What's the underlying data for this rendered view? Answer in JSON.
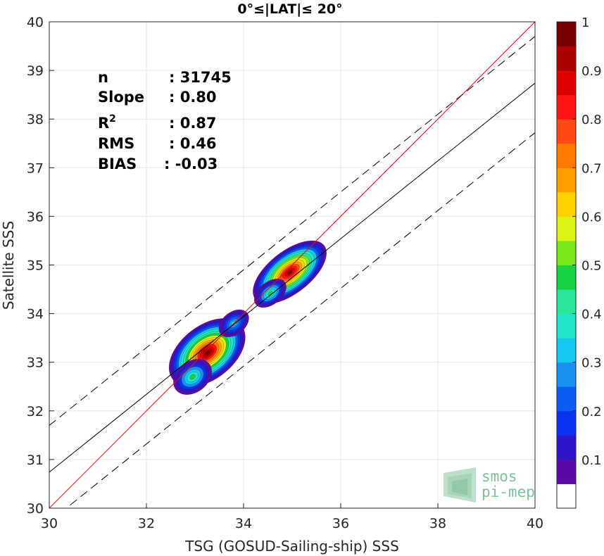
{
  "chart_data": {
    "type": "heatmap",
    "title": "0°≤|LAT|≤ 20°",
    "xlabel": "TSG (GOSUD-Sailing-ship) SSS",
    "ylabel": "Satellite SSS",
    "xlim": [
      30,
      40
    ],
    "ylim": [
      30,
      40
    ],
    "xticks": [
      "30",
      "32",
      "34",
      "36",
      "38",
      "40"
    ],
    "yticks": [
      "30",
      "31",
      "32",
      "33",
      "34",
      "35",
      "36",
      "37",
      "38",
      "39",
      "40"
    ],
    "grid": true,
    "stats": [
      {
        "label": "n",
        "value": ": 31745"
      },
      {
        "label": "Slope",
        "value": ": 0.80"
      },
      {
        "label": "R",
        "sup": "2",
        "value": ": 0.87"
      },
      {
        "label": "RMS",
        "value": ": 0.46"
      },
      {
        "label": "BIAS",
        "value": ": -0.03"
      }
    ],
    "lines": [
      {
        "name": "identity",
        "color": "#ff0000",
        "dash": false,
        "slope": 1.0,
        "intercept": 0.0
      },
      {
        "name": "regression",
        "color": "#000000",
        "dash": false,
        "slope": 0.8,
        "intercept": 6.74
      },
      {
        "name": "upper-bound",
        "color": "#000000",
        "dash": true,
        "slope": 0.8,
        "intercept": 7.7
      },
      {
        "name": "lower-bound",
        "color": "#000000",
        "dash": true,
        "slope": 0.8,
        "intercept": 5.72
      }
    ],
    "density_peaks": [
      {
        "x": 33.25,
        "y": 33.2,
        "level": 1.0
      },
      {
        "x": 34.95,
        "y": 34.85,
        "level": 0.95
      },
      {
        "x": 34.55,
        "y": 34.42,
        "level": 0.45
      },
      {
        "x": 33.8,
        "y": 33.8,
        "level": 0.35
      },
      {
        "x": 32.95,
        "y": 32.7,
        "level": 0.45
      }
    ],
    "colorbar": {
      "range": [
        0.05,
        1
      ],
      "ticks": [
        "0.1",
        "0.2",
        "0.3",
        "0.4",
        "0.5",
        "0.6",
        "0.7",
        "0.8",
        "0.9",
        "1"
      ],
      "colors": [
        "#ffffff",
        "#5c0aa8",
        "#2e17c8",
        "#0a33f0",
        "#0a5cf5",
        "#1a90f0",
        "#14c8f0",
        "#22e6cc",
        "#2ae69a",
        "#18d040",
        "#78e61a",
        "#dcf214",
        "#ffd200",
        "#ffa000",
        "#ff7800",
        "#ff4a14",
        "#ff1414",
        "#dc0000",
        "#aa0000",
        "#780000"
      ]
    }
  },
  "logo": {
    "line1": "smos",
    "line2": "pi-mep"
  }
}
